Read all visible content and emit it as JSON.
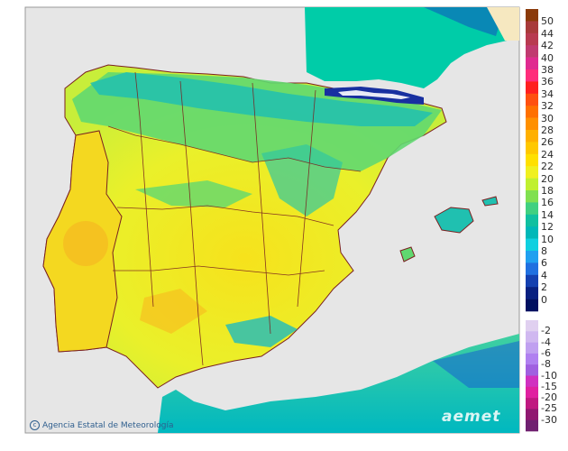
{
  "map": {
    "sea_color": "#e6e6e6",
    "france_color": "#00cca8",
    "africa_color": "#00c0b0",
    "portugal_color": "#f4e020",
    "spain_base_color": "#eaf02a",
    "north_green_color": "#60d870",
    "border_color": "#7a2020"
  },
  "legend": {
    "positive_colors": [
      "#8b3a0a",
      "#a83a3a",
      "#b83a50",
      "#c03a70",
      "#e02a90",
      "#ff2d7a",
      "#ff2020",
      "#ff5010",
      "#ff7000",
      "#ff9000",
      "#ffb000",
      "#ffc800",
      "#ffe000",
      "#f0f020",
      "#c0f030",
      "#80e050",
      "#40d080",
      "#10c0a0",
      "#00b8b8",
      "#10d0e0",
      "#20a0f0",
      "#2070e0",
      "#1440b0",
      "#082080",
      "#001060"
    ],
    "positive_labels": [
      "50",
      "44",
      "42",
      "40",
      "38",
      "36",
      "34",
      "32",
      "30",
      "28",
      "26",
      "24",
      "22",
      "20",
      "18",
      "16",
      "14",
      "12",
      "10",
      "8",
      "6",
      "4",
      "2",
      "0"
    ],
    "negative_colors": [
      "#e0d0f0",
      "#d0b8f0",
      "#c0a0f0",
      "#b080f0",
      "#a060e0",
      "#d030c0",
      "#e020a0",
      "#c01880",
      "#901870",
      "#702070"
    ],
    "negative_labels": [
      "-2",
      "-4",
      "-6",
      "-8",
      "-10",
      "-15",
      "-20",
      "-25",
      "-30"
    ]
  },
  "credit": {
    "text": "Agencia Estatal de Meteorología",
    "icon": "copyright-icon"
  },
  "brand": {
    "text": "aemet",
    "icon": "aemet-logo-icon"
  }
}
